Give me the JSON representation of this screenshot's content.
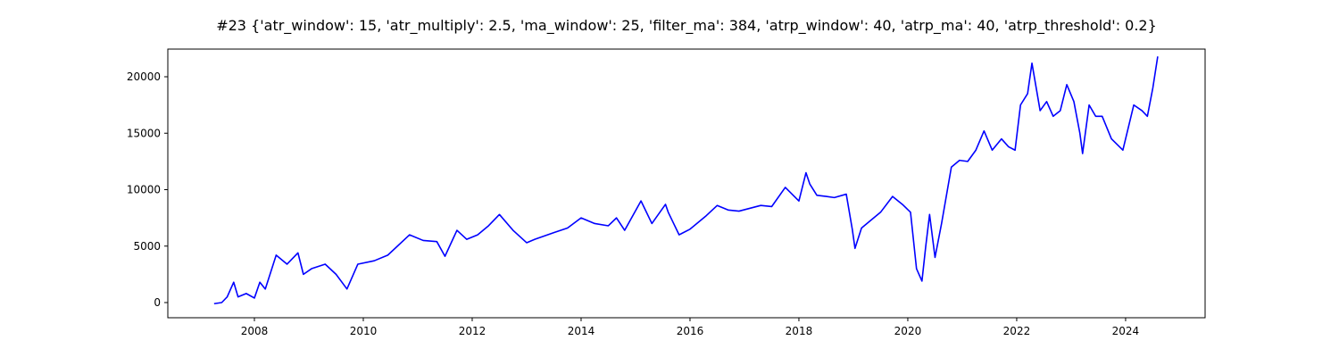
{
  "chart_data": {
    "type": "line",
    "title": "#23 {'atr_window': 15, 'atr_multiply': 2.5, 'ma_window': 25, 'filter_ma': 384, 'atrp_window': 40, 'atrp_ma': 40, 'atrp_threshold': 0.2}",
    "x": [
      2007.26,
      2007.4,
      2007.5,
      2007.62,
      2007.7,
      2007.85,
      2008.0,
      2008.1,
      2008.2,
      2008.4,
      2008.6,
      2008.8,
      2008.9,
      2009.05,
      2009.3,
      2009.5,
      2009.7,
      2009.9,
      2010.2,
      2010.45,
      2010.85,
      2011.1,
      2011.35,
      2011.5,
      2011.72,
      2011.9,
      2012.1,
      2012.3,
      2012.5,
      2012.75,
      2013.0,
      2013.15,
      2013.5,
      2013.75,
      2014.0,
      2014.25,
      2014.5,
      2014.65,
      2014.8,
      2015.1,
      2015.3,
      2015.55,
      2015.6,
      2015.8,
      2016.0,
      2016.3,
      2016.5,
      2016.7,
      2016.9,
      2017.3,
      2017.5,
      2017.75,
      2018.0,
      2018.13,
      2018.2,
      2018.33,
      2018.5,
      2018.65,
      2018.87,
      2018.98,
      2019.03,
      2019.15,
      2019.3,
      2019.5,
      2019.72,
      2019.9,
      2020.05,
      2020.16,
      2020.26,
      2020.33,
      2020.4,
      2020.5,
      2020.62,
      2020.8,
      2020.95,
      2021.1,
      2021.25,
      2021.4,
      2021.55,
      2021.72,
      2021.85,
      2021.97,
      2022.07,
      2022.2,
      2022.28,
      2022.43,
      2022.55,
      2022.67,
      2022.8,
      2022.92,
      2023.05,
      2023.16,
      2023.21,
      2023.33,
      2023.45,
      2023.57,
      2023.74,
      2023.95,
      2024.15,
      2024.3,
      2024.4,
      2024.5,
      2024.59
    ],
    "series": [
      {
        "color": "#0000ff",
        "values": [
          -100,
          0,
          500,
          1800,
          500,
          800,
          400,
          1800,
          1200,
          4200,
          3400,
          4400,
          2500,
          3000,
          3400,
          2500,
          1200,
          3400,
          3700,
          4200,
          6000,
          5500,
          5400,
          4100,
          6400,
          5600,
          6000,
          6800,
          7800,
          6400,
          5300,
          5600,
          6200,
          6600,
          7500,
          7000,
          6800,
          7500,
          6400,
          9000,
          7000,
          8700,
          8000,
          6000,
          6500,
          7700,
          8600,
          8200,
          8100,
          8600,
          8500,
          10200,
          9000,
          11500,
          10500,
          9500,
          9400,
          9300,
          9600,
          6500,
          4800,
          6600,
          7200,
          8000,
          9400,
          8700,
          8000,
          3000,
          1900,
          5000,
          7800,
          4000,
          7000,
          12000,
          12600,
          12500,
          13500,
          15200,
          13500,
          14500,
          13800,
          13500,
          17500,
          18500,
          21200,
          17000,
          17800,
          16500,
          17000,
          19300,
          17800,
          15000,
          13200,
          17500,
          16500,
          16500,
          14500,
          13500,
          17500,
          17000,
          16500,
          19000,
          21800
        ]
      }
    ],
    "xlim": [
      2006.41,
      2025.46
    ],
    "xticks": [
      2008,
      2010,
      2012,
      2014,
      2016,
      2018,
      2020,
      2022,
      2024
    ],
    "ylim": [
      -1344,
      22451
    ],
    "yticks": [
      0,
      5000,
      10000,
      15000,
      20000
    ]
  }
}
